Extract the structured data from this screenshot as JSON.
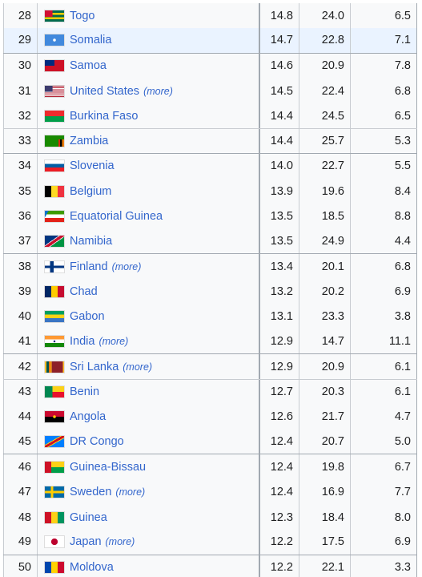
{
  "table": {
    "rows": [
      [
        "28",
        "Togo",
        null,
        "14.8",
        "24.0",
        "6.5"
      ],
      [
        "29",
        "Somalia",
        null,
        "14.7",
        "22.8",
        "7.1"
      ],
      [
        "30",
        "Samoa",
        null,
        "14.6",
        "20.9",
        "7.8"
      ],
      [
        "31",
        "United States",
        "(more)",
        "14.5",
        "22.4",
        "6.8"
      ],
      [
        "32",
        "Burkina Faso",
        null,
        "14.4",
        "24.5",
        "6.5"
      ],
      [
        "33",
        "Zambia",
        null,
        "14.4",
        "25.7",
        "5.3"
      ],
      [
        "34",
        "Slovenia",
        null,
        "14.0",
        "22.7",
        "5.5"
      ],
      [
        "35",
        "Belgium",
        null,
        "13.9",
        "19.6",
        "8.4"
      ],
      [
        "36",
        "Equatorial Guinea",
        null,
        "13.5",
        "18.5",
        "8.8"
      ],
      [
        "37",
        "Namibia",
        null,
        "13.5",
        "24.9",
        "4.4"
      ],
      [
        "38",
        "Finland",
        "(more)",
        "13.4",
        "20.1",
        "6.8"
      ],
      [
        "39",
        "Chad",
        null,
        "13.2",
        "20.2",
        "6.9"
      ],
      [
        "40",
        "Gabon",
        null,
        "13.1",
        "23.3",
        "3.8"
      ],
      [
        "41",
        "India",
        "(more)",
        "12.9",
        "14.7",
        "11.1"
      ],
      [
        "42",
        "Sri Lanka",
        "(more)",
        "12.9",
        "20.9",
        "6.1"
      ],
      [
        "43",
        "Benin",
        null,
        "12.7",
        "20.3",
        "6.1"
      ],
      [
        "44",
        "Angola",
        null,
        "12.6",
        "21.7",
        "4.7"
      ],
      [
        "45",
        "DR Congo",
        null,
        "12.4",
        "20.7",
        "5.0"
      ],
      [
        "46",
        "Guinea-Bissau",
        null,
        "12.4",
        "19.8",
        "6.7"
      ],
      [
        "47",
        "Sweden",
        "(more)",
        "12.4",
        "16.9",
        "7.7"
      ],
      [
        "48",
        "Guinea",
        null,
        "12.3",
        "18.4",
        "8.0"
      ],
      [
        "49",
        "Japan",
        "(more)",
        "12.2",
        "17.5",
        "6.9"
      ],
      [
        "50",
        "Moldova",
        null,
        "12.2",
        "22.1",
        "3.3"
      ]
    ]
  }
}
